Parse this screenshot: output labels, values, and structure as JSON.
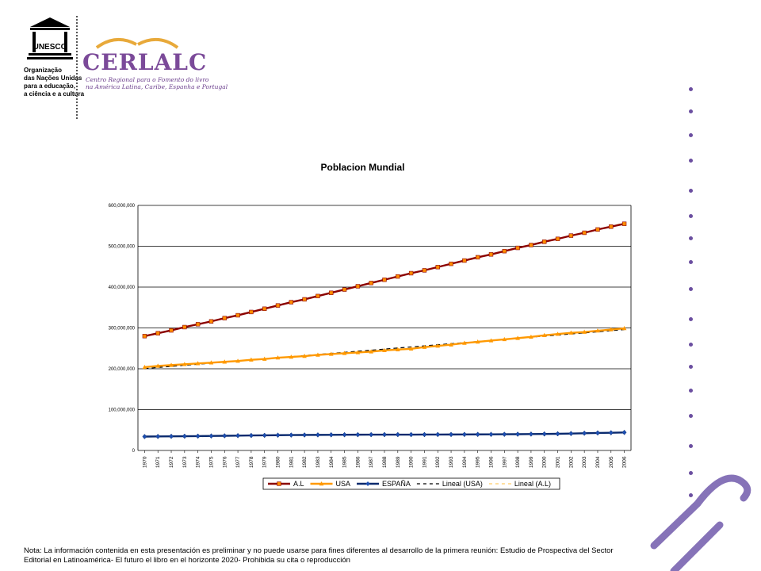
{
  "unesco": {
    "acronym": "UNESCO",
    "lines": [
      "Organização",
      "das Nações Unidas",
      "para a educação,",
      "a ciência e a cultura"
    ]
  },
  "cerlalc": {
    "name": "CERLALC",
    "subtitle_1": "Centro Regional para o Fomento do livro",
    "subtitle_2": "na América Latina, Caribe, Espanha e Portugal",
    "color": "#7b4a99"
  },
  "footnote": "Nota: La información contenida en esta presentación es preliminar y no puede usarse para fines diferentes al desarrollo de la primera reunión: Estudio de Prospectiva del Sector Editorial en Latinoamérica- El futuro el libro en el horizonte 2020- Prohibida su cita o reproducción",
  "chart_data": {
    "type": "line",
    "title": "Poblacion Mundial",
    "xlabel": "",
    "ylabel": "",
    "ylim": [
      0,
      600000000
    ],
    "yticks": [
      0,
      100000000,
      200000000,
      300000000,
      400000000,
      500000000,
      600000000
    ],
    "ytick_labels": [
      "0",
      "100,000,000",
      "200,000,000",
      "300,000,000",
      "400,000,000",
      "500,000,000",
      "600,000,000"
    ],
    "grid": "horizontal",
    "legend_position": "bottom",
    "categories": [
      "1970",
      "1971",
      "1972",
      "1973",
      "1974",
      "1975",
      "1976",
      "1977",
      "1978",
      "1979",
      "1980",
      "1981",
      "1982",
      "1983",
      "1984",
      "1985",
      "1986",
      "1987",
      "1988",
      "1989",
      "1990",
      "1991",
      "1992",
      "1993",
      "1994",
      "1995",
      "1996",
      "1997",
      "1998",
      "1999",
      "2000",
      "2001",
      "2002",
      "2003",
      "2004",
      "2005",
      "2006"
    ],
    "series": [
      {
        "name": "A.L",
        "color": "#8b0000",
        "marker_color": "#ff8c00",
        "marker": "square",
        "values": [
          280000000,
          287000000,
          294000000,
          302000000,
          309000000,
          316000000,
          324000000,
          331000000,
          339000000,
          347000000,
          355000000,
          363000000,
          370000000,
          378000000,
          386000000,
          394000000,
          402000000,
          410000000,
          418000000,
          426000000,
          434000000,
          441000000,
          449000000,
          457000000,
          465000000,
          473000000,
          480000000,
          488000000,
          496000000,
          503000000,
          511000000,
          518000000,
          526000000,
          533000000,
          541000000,
          548000000,
          555000000
        ]
      },
      {
        "name": "USA",
        "color": "#ff9900",
        "marker_color": "#ff9900",
        "marker": "triangle",
        "values": [
          204000000,
          207000000,
          209000000,
          211000000,
          213000000,
          215000000,
          217000000,
          219000000,
          222000000,
          224000000,
          227000000,
          229000000,
          231000000,
          234000000,
          236000000,
          238000000,
          240000000,
          242000000,
          245000000,
          247000000,
          249000000,
          253000000,
          256000000,
          259000000,
          263000000,
          266000000,
          269000000,
          272000000,
          275000000,
          278000000,
          282000000,
          285000000,
          288000000,
          290000000,
          293000000,
          296000000,
          299000000
        ]
      },
      {
        "name": "ESPAÑA",
        "color": "#0a2a6e",
        "marker_color": "#1c4fb3",
        "marker": "diamond",
        "values": [
          34000000,
          34300000,
          34600000,
          34900000,
          35100000,
          35500000,
          35900000,
          36300000,
          36700000,
          37000000,
          37400000,
          37700000,
          37900000,
          38100000,
          38300000,
          38500000,
          38600000,
          38700000,
          38800000,
          38800000,
          38800000,
          38900000,
          39000000,
          39100000,
          39200000,
          39300000,
          39400000,
          39600000,
          39800000,
          40100000,
          40400000,
          40800000,
          41400000,
          42200000,
          42900000,
          43400000,
          44100000
        ]
      },
      {
        "name": "Lineal (USA)",
        "color": "#000000",
        "dash": "dashed",
        "trend_of": "USA"
      },
      {
        "name": "Lineal (A.L)",
        "color": "#ffcc66",
        "dash": "dashed",
        "trend_of": "A.L"
      }
    ]
  }
}
